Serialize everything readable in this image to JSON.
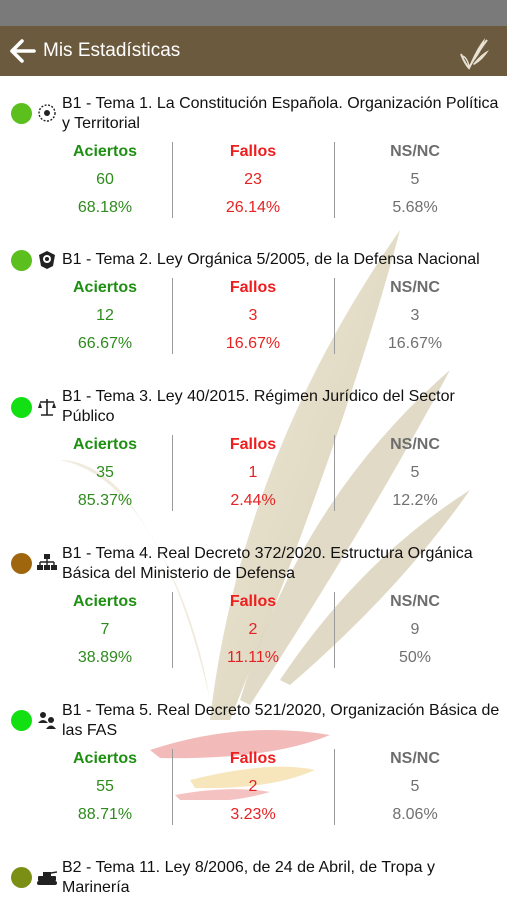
{
  "header": {
    "title": "Mis Estadísticas",
    "back_icon": "arrow-left-icon",
    "logo_icon": "wheat-logo-icon",
    "bar_color": "#6b5a3e"
  },
  "labels": {
    "aciertos": "Aciertos",
    "fallos": "Fallos",
    "nsnc": "NS/NC"
  },
  "colors": {
    "aciertos": "#1f8f12",
    "fallos": "#ee1e1e",
    "nsnc": "#6d6d6d"
  },
  "topics": [
    {
      "title": "B1 - Tema 1. La Constitución Española. Organización Política y Territorial",
      "icon": "constitution-icon",
      "dot_color": "#5bbf1d",
      "aciertos": "60",
      "aciertos_pct": "68.18%",
      "fallos": "23",
      "fallos_pct": "26.14%",
      "nsnc": "5",
      "nsnc_pct": "5.68%"
    },
    {
      "title": "B1 - Tema 2. Ley Orgánica 5/2005, de la Defensa Nacional",
      "icon": "defense-emblem-icon",
      "dot_color": "#5bbf1d",
      "aciertos": "12",
      "aciertos_pct": "66.67%",
      "fallos": "3",
      "fallos_pct": "16.67%",
      "nsnc": "3",
      "nsnc_pct": "16.67%"
    },
    {
      "title": "B1 - Tema 3. Ley 40/2015. Régimen Jurídico del Sector Público",
      "icon": "scales-icon",
      "dot_color": "#12e012",
      "aciertos": "35",
      "aciertos_pct": "85.37%",
      "fallos": "1",
      "fallos_pct": "2.44%",
      "nsnc": "5",
      "nsnc_pct": "12.2%"
    },
    {
      "title": "B1 - Tema 4. Real Decreto 372/2020. Estructura Orgánica Básica del Ministerio de Defensa",
      "icon": "organization-icon",
      "dot_color": "#a0660d",
      "aciertos": "7",
      "aciertos_pct": "38.89%",
      "fallos": "2",
      "fallos_pct": "11.11%",
      "nsnc": "9",
      "nsnc_pct": "50%"
    },
    {
      "title": "B1 - Tema 5. Real Decreto 521/2020, Organización Básica de las FAS",
      "icon": "people-icon",
      "dot_color": "#12e012",
      "aciertos": "55",
      "aciertos_pct": "88.71%",
      "fallos": "2",
      "fallos_pct": "3.23%",
      "nsnc": "5",
      "nsnc_pct": "8.06%"
    },
    {
      "title": "B2 - Tema 11. Ley 8/2006, de 24 de Abril, de Tropa y Marinería",
      "icon": "tank-icon",
      "dot_color": "#7a8f14"
    }
  ]
}
